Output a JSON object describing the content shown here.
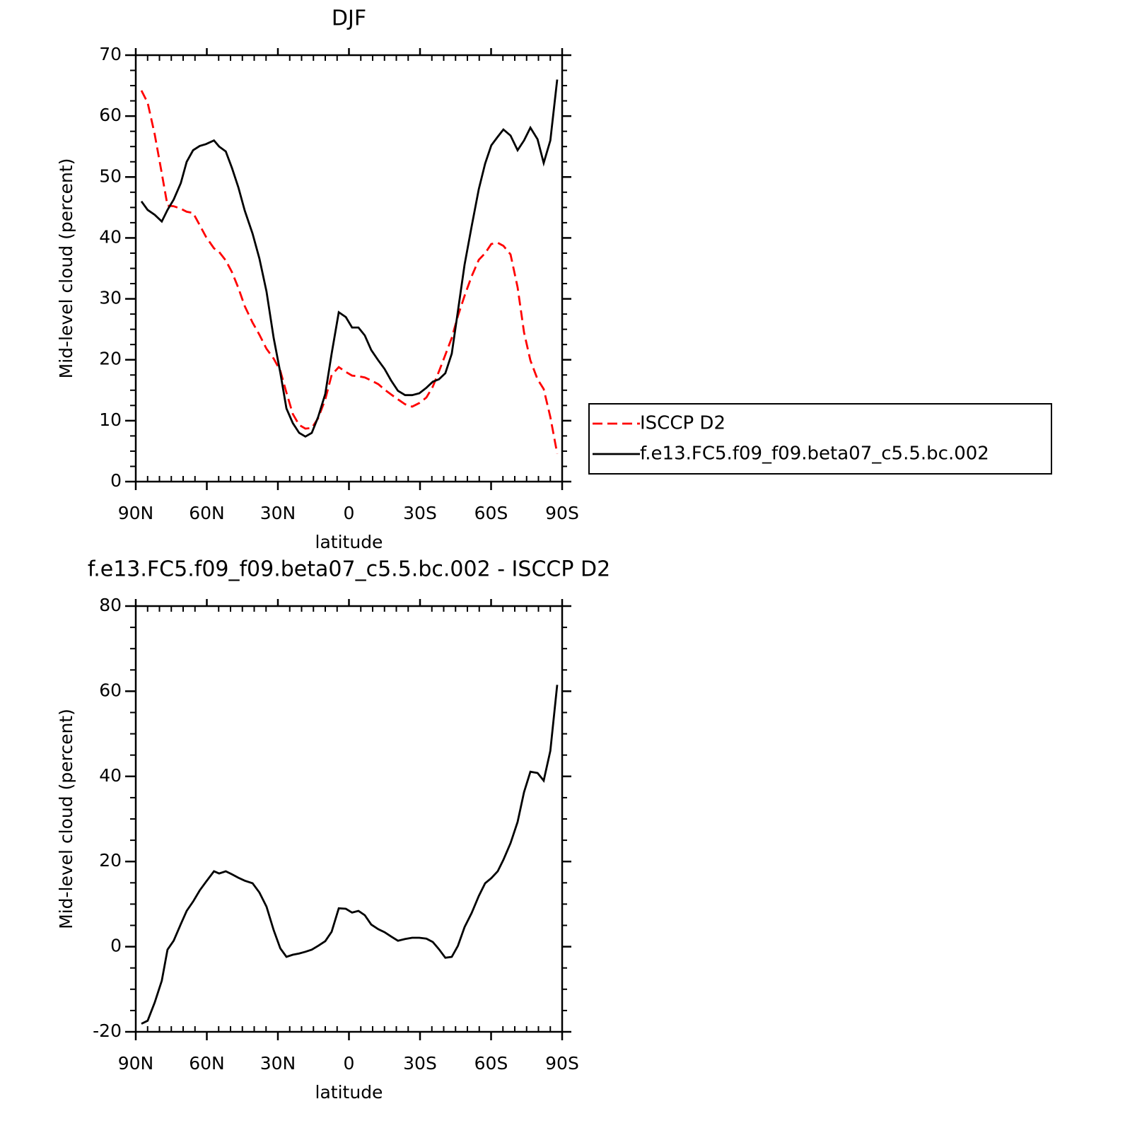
{
  "chart_data": [
    {
      "type": "line",
      "title": "DJF",
      "xlabel": "latitude",
      "ylabel": "Mid-level cloud (percent)",
      "x": [
        87.6,
        85,
        82,
        79,
        76.6,
        74,
        71,
        68.5,
        65.8,
        63,
        60.4,
        57,
        54.8,
        52,
        49.4,
        46.7,
        44,
        40.7,
        37.8,
        34.8,
        31.8,
        29,
        26.4,
        23.7,
        21,
        18.4,
        15.7,
        13,
        10,
        7.3,
        4.3,
        1.3,
        -1.3,
        -4,
        -6.7,
        -9.4,
        -12.4,
        -15,
        -17.8,
        -20.7,
        -23.7,
        -26.7,
        -29.7,
        -32.7,
        -35.4,
        -38,
        -40.7,
        -43.4,
        -46,
        -48.8,
        -51.8,
        -54.8,
        -57.5,
        -60.1,
        -62.8,
        -65.2,
        -68.2,
        -71.2,
        -73.9,
        -76.6,
        -79.6,
        -82.2,
        -85,
        -87.9
      ],
      "series": [
        {
          "name": "ISCCP D2",
          "color": "#ff0000",
          "dash": "dashed",
          "values": [
            64.2,
            62.2,
            57,
            50.6,
            45.3,
            45.2,
            44.8,
            44.3,
            44.1,
            42.1,
            40.2,
            38.3,
            37.7,
            36.3,
            34.4,
            31.8,
            28.8,
            26.1,
            24.1,
            21.8,
            20.2,
            18.2,
            14.6,
            11.1,
            9.3,
            8.7,
            8.8,
            10.4,
            13.5,
            17.5,
            18.8,
            18,
            17.4,
            17.3,
            17.1,
            16.6,
            16,
            15.1,
            14.3,
            13.5,
            12.7,
            12.3,
            12.9,
            13.8,
            15.6,
            18.1,
            20.8,
            23.6,
            27.2,
            30.5,
            33.7,
            36.4,
            37.5,
            39,
            39.2,
            38.7,
            37.3,
            31.9,
            24.5,
            19.9,
            16.8,
            15.2,
            10.6,
            4.6
          ]
        },
        {
          "name": "f.e13.FC5.f09_f09.beta07_c5.5.bc.002",
          "color": "#000000",
          "dash": "solid",
          "values": [
            46,
            44.6,
            43.8,
            42.7,
            44.6,
            46.3,
            49,
            52.5,
            54.4,
            55.1,
            55.4,
            56,
            55,
            54.2,
            51.5,
            48.3,
            44.5,
            40.7,
            36.6,
            31.2,
            23.6,
            17.9,
            12,
            9.6,
            8,
            7.4,
            8,
            10.6,
            14.4,
            21,
            27.8,
            27,
            25.3,
            25.3,
            24,
            21.6,
            19.9,
            18.5,
            16.6,
            14.9,
            14.2,
            14.2,
            14.5,
            15.4,
            16.4,
            16.8,
            17.8,
            21,
            28,
            35.6,
            41.9,
            48,
            52.2,
            55.2,
            56.6,
            57.8,
            56.8,
            54.4,
            56,
            58.1,
            56.2,
            52.3,
            56,
            66
          ]
        }
      ],
      "xlim": [
        90,
        -90
      ],
      "xticks": [
        {
          "value": 90,
          "label": "90N"
        },
        {
          "value": 60,
          "label": "60N"
        },
        {
          "value": 30,
          "label": "30N"
        },
        0,
        {
          "value": -30,
          "label": "30S"
        },
        {
          "value": -60,
          "label": "60S"
        },
        {
          "value": -90,
          "label": "90S"
        }
      ],
      "ylim": [
        0,
        70
      ],
      "yticks": [
        0,
        10,
        20,
        30,
        40,
        50,
        60,
        70
      ],
      "legend": "right"
    },
    {
      "type": "line",
      "title": "f.e13.FC5.f09_f09.beta07_c5.5.bc.002 - ISCCP D2",
      "xlabel": "latitude",
      "ylabel": "Mid-level cloud (percent)",
      "x": [
        87.6,
        85,
        82,
        79,
        76.6,
        74,
        71,
        68.5,
        65.8,
        63,
        60.4,
        57,
        54.8,
        52,
        49.4,
        46.7,
        44,
        40.7,
        37.8,
        34.8,
        31.8,
        29,
        26.4,
        23.7,
        21,
        18.4,
        15.7,
        13,
        10,
        7.3,
        4.3,
        1.3,
        -1.3,
        -4,
        -6.7,
        -9.4,
        -12.4,
        -15,
        -17.8,
        -20.7,
        -23.7,
        -26.7,
        -29.7,
        -32.7,
        -35.4,
        -38,
        -40.7,
        -43.4,
        -46,
        -48.8,
        -51.8,
        -54.8,
        -57.5,
        -60.1,
        -62.8,
        -65.2,
        -68.2,
        -71.2,
        -73.9,
        -76.6,
        -79.6,
        -82.2,
        -85,
        -87.9
      ],
      "values": [
        -18.1,
        -17.4,
        -13.1,
        -8,
        -0.7,
        1.4,
        5.3,
        8.4,
        10.6,
        13.2,
        15.2,
        17.7,
        17.2,
        17.7,
        17,
        16.2,
        15.5,
        14.9,
        12.7,
        9.4,
        3.9,
        -0.4,
        -2.4,
        -1.9,
        -1.6,
        -1.2,
        -0.7,
        0.2,
        1.3,
        3.5,
        9,
        8.9,
        8,
        8.4,
        7.4,
        5.2,
        4.1,
        3.4,
        2.4,
        1.4,
        1.8,
        2.1,
        2.1,
        1.9,
        1.1,
        -0.6,
        -2.6,
        -2.4,
        0.2,
        4.6,
        7.9,
        11.9,
        14.9,
        16.1,
        17.7,
        20.4,
        24.3,
        29.3,
        36.3,
        41.1,
        40.8,
        39,
        46,
        61.5
      ],
      "color": "#000000",
      "xlim": [
        90,
        -90
      ],
      "xticks": [
        {
          "value": 90,
          "label": "90N"
        },
        {
          "value": 60,
          "label": "60N"
        },
        {
          "value": 30,
          "label": "30N"
        },
        0,
        {
          "value": -30,
          "label": "30S"
        },
        {
          "value": -60,
          "label": "60S"
        },
        {
          "value": -90,
          "label": "90S"
        }
      ],
      "ylim": [
        -20,
        80
      ],
      "yticks": [
        -20,
        0,
        20,
        40,
        60,
        80
      ]
    }
  ]
}
